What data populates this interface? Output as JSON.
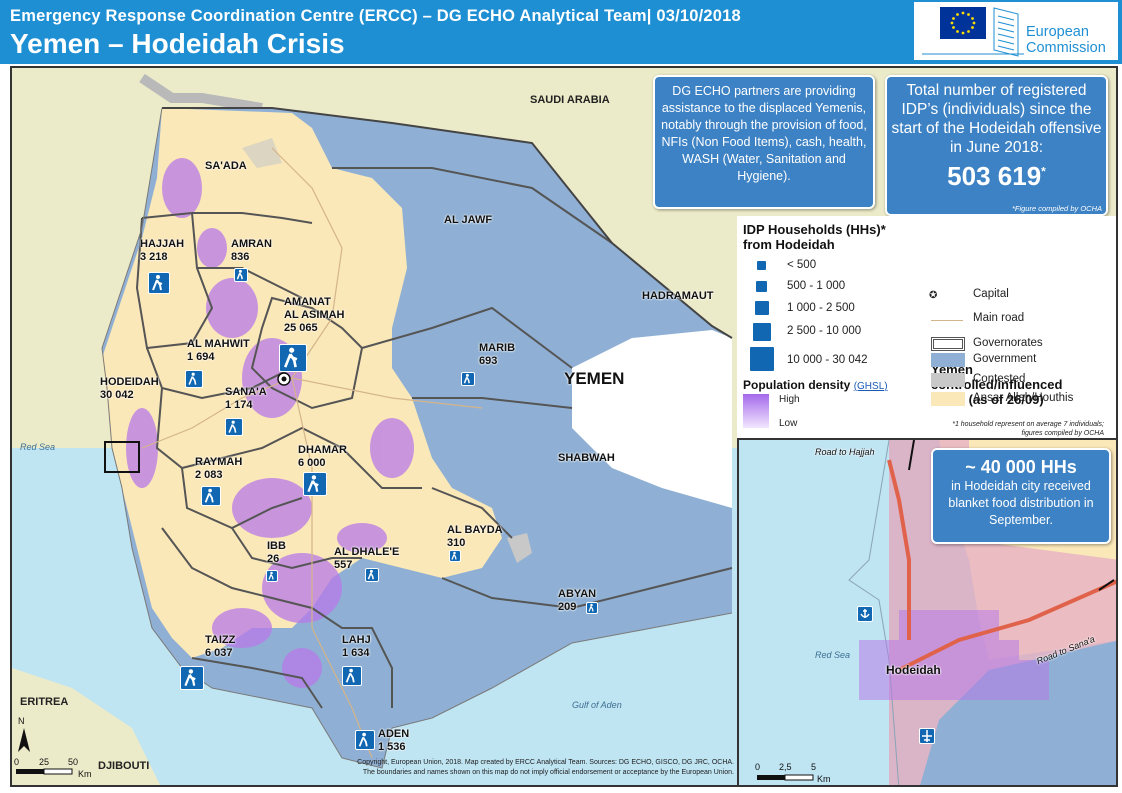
{
  "header": {
    "subtitle": "Emergency Response Coordination Centre (ERCC) – DG ECHO Analytical  Team| 03/10/2018",
    "title": "Yemen – Hodeidah Crisis",
    "logo_text_1": "European",
    "logo_text_2": "Commission"
  },
  "map": {
    "countries": {
      "saudi": "SAUDI ARABIA",
      "eritrea": "ERITREA",
      "djibouti": "DJIBOUTI",
      "yemen": "YEMEN"
    },
    "seas": {
      "red_sea": "Red Sea",
      "gulf_aden": "Gulf of Aden"
    },
    "governorates": {
      "saada": "SA'ADA",
      "aljawf": "AL JAWF",
      "hadramaut": "HADRAMAUT",
      "shabwah": "SHABWAH",
      "hajjah": "HAJJAH",
      "hajjah_v": "3 218",
      "amran": "AMRAN",
      "amran_v": "836",
      "amanat1": "AMANAT",
      "amanat2": "AL ASIMAH",
      "amanat_v": "25 065",
      "mahwit": "AL MAHWIT",
      "mahwit_v": "1 694",
      "hodeidah": "HODEIDAH",
      "hodeidah_v": "30 042",
      "sanaa": "SANA'A",
      "sanaa_v": "1 174",
      "marib": "MARIB",
      "marib_v": "693",
      "raymah": "RAYMAH",
      "raymah_v": "2 083",
      "dhamar": "DHAMAR",
      "dhamar_v": "6 000",
      "albayda": "AL BAYDA",
      "albayda_v": "310",
      "ibb": "IBB",
      "ibb_v": "26",
      "dhalee": "AL DHALE'E",
      "dhalee_v": "557",
      "abyan": "ABYAN",
      "abyan_v": "209",
      "taizz": "TAIZZ",
      "taizz_v": "6 037",
      "lahj": "LAHJ",
      "lahj_v": "1 634",
      "aden": "ADEN",
      "aden_v": "1 536"
    },
    "scale": {
      "t0": "0",
      "t1": "25",
      "t2": "50",
      "unit": "Km"
    },
    "north": "N",
    "copyright_1": "Copyright, European  Union, 2018. Map created  by ERCC Analytical Team.  Sources: DG ECHO, GISCO, DG JRC, OCHA.",
    "copyright_2": "The boundaries and names  shown on this map do not imply official endorsement or acceptance  by the European Union."
  },
  "info_assist": "DG ECHO partners are providing assistance to the displaced Yemenis, notably through the provision of food, NFIs (Non Food Items), cash, health, WASH (Water, Sanitation and Hygiene).",
  "info_total": {
    "text": "Total number of registered IDP’s (individuals) since the start of the Hodeidah offensive in June 2018:",
    "number": "503 619",
    "star": "*",
    "note": "*Figure compiled  by OCHA"
  },
  "legend": {
    "idp_title_1": "IDP Households (HHs)*",
    "idp_title_2": "from Hodeidah",
    "classes": [
      "< 500",
      "500 - 1 000",
      "1 000 - 2 500",
      "2 500 - 10 000",
      "10 000 - 30 042"
    ],
    "pop_title": "Population density",
    "pop_link": "(GHSL)",
    "pop_high": "High",
    "pop_low": "Low",
    "capital": "Capital",
    "main_road": "Main road",
    "governorates": "Governorates",
    "control_title_1": "Yemen",
    "control_title_2": "controlled/influenced",
    "control_title_3": "areas (as of 26/09)",
    "government": "Government",
    "contested": "Contested",
    "ansar": "Ansar Allah/Houthis",
    "note_1": "*1 household represent  on average  7 individuals;",
    "note_2": "figures compiled by OCHA",
    "colors": {
      "government": "#8fb0d4",
      "contested": "#c8c8c8",
      "ansar": "#fbe8b8"
    }
  },
  "inset": {
    "road_hajjah": "Road to Hajjah",
    "road_sanaa": "Road to Sana'a",
    "red_sea": "Red Sea",
    "city": "Hodeidah",
    "hh_big": "~ 40 000 HHs",
    "hh_text": "in Hodeidah city received blanket food distribution in September.",
    "scale": {
      "t0": "0",
      "t1": "2,5",
      "t2": "5",
      "unit": "Km"
    }
  }
}
